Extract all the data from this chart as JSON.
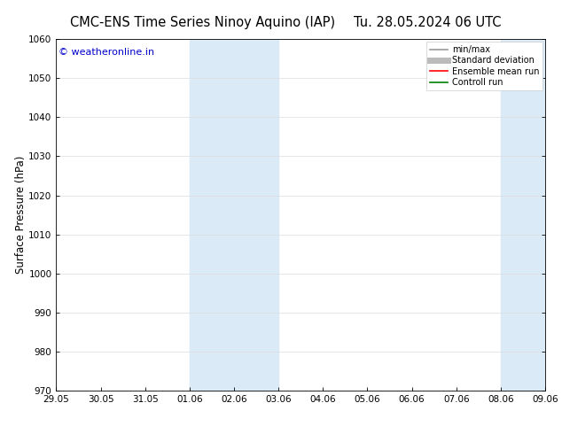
{
  "title_left": "CMC-ENS Time Series Ninoy Aquino (IAP)",
  "title_right": "Tu. 28.05.2024 06 UTC",
  "ylabel": "Surface Pressure (hPa)",
  "ylim": [
    970,
    1060
  ],
  "yticks": [
    970,
    980,
    990,
    1000,
    1010,
    1020,
    1030,
    1040,
    1050,
    1060
  ],
  "xtick_labels": [
    "29.05",
    "30.05",
    "31.05",
    "01.06",
    "02.06",
    "03.06",
    "04.06",
    "05.06",
    "06.06",
    "07.06",
    "08.06",
    "09.06"
  ],
  "xtick_positions": [
    0,
    1,
    2,
    3,
    4,
    5,
    6,
    7,
    8,
    9,
    10,
    11
  ],
  "shaded_bands": [
    {
      "x_start": 3,
      "x_end": 4
    },
    {
      "x_start": 4,
      "x_end": 5
    },
    {
      "x_start": 10,
      "x_end": 11
    }
  ],
  "shaded_color": "#daeaf7",
  "watermark_text": "© weatheronline.in",
  "watermark_color": "#0000cc",
  "legend_items": [
    {
      "label": "min/max",
      "color": "#999999",
      "lw": 1.2,
      "style": "solid"
    },
    {
      "label": "Standard deviation",
      "color": "#bbbbbb",
      "lw": 5,
      "style": "solid"
    },
    {
      "label": "Ensemble mean run",
      "color": "#ff0000",
      "lw": 1.2,
      "style": "solid"
    },
    {
      "label": "Controll run",
      "color": "#008000",
      "lw": 1.2,
      "style": "solid"
    }
  ],
  "bg_color": "#ffffff",
  "grid_color": "#dddddd",
  "title_fontsize": 10.5,
  "label_fontsize": 8.5,
  "tick_fontsize": 7.5,
  "watermark_fontsize": 8
}
